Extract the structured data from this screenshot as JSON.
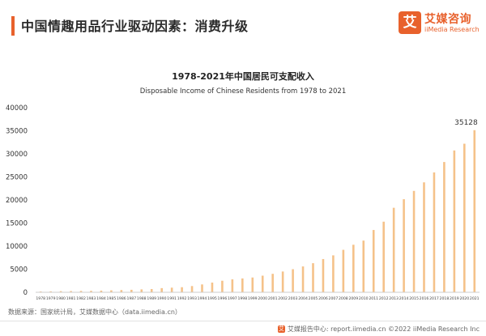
{
  "header": {
    "title": "中国情趣用品行业驱动因素：消费升级",
    "accent_color": "#e8612c"
  },
  "logo": {
    "mark": "艾",
    "name_cn": "艾媒咨询",
    "name_en": "iiMedia Research",
    "color": "#e8612c"
  },
  "chart_data": {
    "type": "bar",
    "title": "1978-2021年中国居民可支配收入",
    "subtitle": "Disposable Income of Chinese Residents from 1978 to 2021",
    "xlabel": "",
    "ylabel": "",
    "ylim": [
      0,
      40000
    ],
    "yticks": [
      0,
      5000,
      10000,
      15000,
      20000,
      25000,
      30000,
      35000,
      40000
    ],
    "grid": false,
    "legend": "none",
    "bar_color": "#f5c28a",
    "categories": [
      "1978",
      "1979",
      "1980",
      "1981",
      "1982",
      "1983",
      "1984",
      "1985",
      "1986",
      "1987",
      "1988",
      "1989",
      "1990",
      "1991",
      "1992",
      "1993",
      "1994",
      "1995",
      "1996",
      "1997",
      "1998",
      "1999",
      "2000",
      "2001",
      "2002",
      "2003",
      "2004",
      "2005",
      "2006",
      "2007",
      "2008",
      "2009",
      "2010",
      "2011",
      "2012",
      "2013",
      "2014",
      "2015",
      "2016",
      "2017",
      "2018",
      "2019",
      "2020",
      "2021"
    ],
    "values": [
      171,
      200,
      247,
      270,
      300,
      320,
      360,
      420,
      480,
      540,
      630,
      700,
      900,
      1000,
      1100,
      1350,
      1700,
      2100,
      2500,
      2800,
      3000,
      3200,
      3600,
      4000,
      4500,
      5000,
      5600,
      6300,
      7200,
      8000,
      9200,
      10300,
      11200,
      13500,
      15300,
      18311,
      20167,
      21966,
      23821,
      25974,
      28228,
      30733,
      32189,
      35128
    ],
    "data_labels": [
      {
        "index": 43,
        "text": "35128"
      }
    ]
  },
  "source": "数据来源：国家统计局，艾媒数据中心（data.iimedia.cn）",
  "footer": {
    "icon": "艾",
    "text": "艾媒报告中心: report.iimedia.cn  ©2022  iiMedia Research  Inc"
  }
}
